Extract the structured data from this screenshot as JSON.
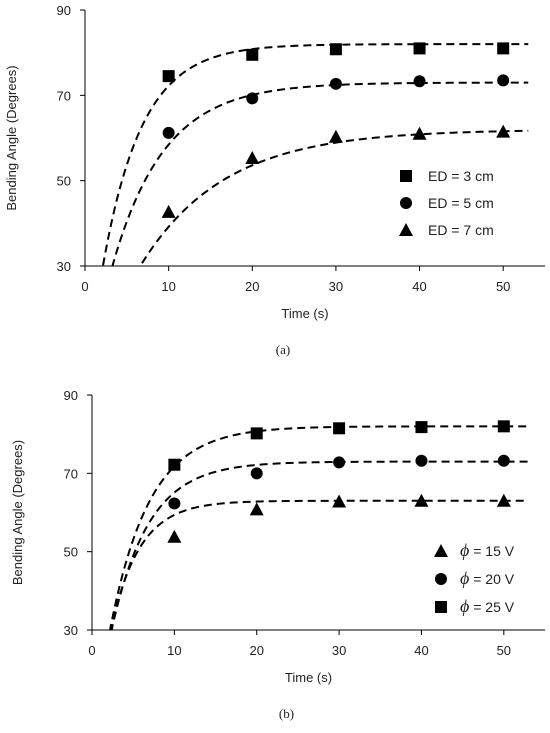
{
  "chart_data": [
    {
      "type": "scatter",
      "caption": "(a)",
      "xlabel": "Time (s)",
      "ylabel": "Bending Angle (Degrees)",
      "xlim": [
        0,
        55
      ],
      "ylim": [
        30,
        90
      ],
      "xticks": [
        0,
        10,
        20,
        30,
        40,
        50
      ],
      "yticks": [
        30,
        50,
        70,
        90
      ],
      "grid": false,
      "legend_position": "right",
      "fit_lines": "dashed",
      "series": [
        {
          "name": "ED = 3 cm",
          "marker": "square",
          "x": [
            10,
            20,
            30,
            40,
            50
          ],
          "y": [
            74.5,
            79.5,
            80.8,
            81.0,
            81.0
          ],
          "fit": {
            "plateau": 82.0,
            "tau": 4.7
          }
        },
        {
          "name": "ED = 5 cm",
          "marker": "circle",
          "x": [
            10,
            20,
            30,
            40,
            50
          ],
          "y": [
            61.2,
            69.3,
            72.7,
            73.3,
            73.5
          ],
          "fit": {
            "plateau": 73.0,
            "tau": 6.2
          }
        },
        {
          "name": "ED = 7 cm",
          "marker": "triangle",
          "x": [
            10,
            20,
            30,
            40,
            50
          ],
          "y": [
            42.7,
            55.3,
            60.3,
            61.0,
            61.5
          ],
          "fit": {
            "plateau": 62.0,
            "tau": 10.0
          }
        }
      ]
    },
    {
      "type": "scatter",
      "caption": "(b)",
      "xlabel": "Time (s)",
      "ylabel": "Bending Angle (Degrees)",
      "xlim": [
        0,
        55
      ],
      "ylim": [
        30,
        90
      ],
      "xticks": [
        0,
        10,
        20,
        30,
        40,
        50
      ],
      "yticks": [
        30,
        50,
        70,
        90
      ],
      "grid": false,
      "legend_position": "right",
      "fit_lines": "dashed",
      "series": [
        {
          "name": "ϕ = 15 V",
          "legend_symbol": "ϕ",
          "legend_rest": " = 15 V",
          "marker": "triangle",
          "x": [
            10,
            20,
            30,
            40,
            50
          ],
          "y": [
            53.8,
            60.8,
            62.8,
            63.0,
            63.0
          ],
          "fit": {
            "plateau": 63.0,
            "tau": 3.5
          }
        },
        {
          "name": "ϕ = 20 V",
          "legend_symbol": "ϕ",
          "legend_rest": " = 20 V",
          "marker": "circle",
          "x": [
            10,
            20,
            30,
            40,
            50
          ],
          "y": [
            62.3,
            70.0,
            72.8,
            73.2,
            73.2
          ],
          "fit": {
            "plateau": 73.0,
            "tau": 4.5
          }
        },
        {
          "name": "ϕ = 25 V",
          "legend_symbol": "ϕ",
          "legend_rest": " = 25 V",
          "marker": "square",
          "x": [
            10,
            20,
            30,
            40,
            50
          ],
          "y": [
            72.2,
            80.2,
            81.5,
            81.8,
            82.0
          ],
          "fit": {
            "plateau": 82.0,
            "tau": 4.8
          }
        }
      ]
    }
  ]
}
